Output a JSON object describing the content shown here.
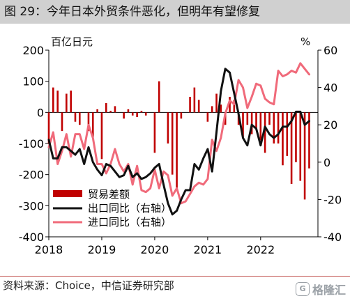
{
  "title": "图 29：今年日本外贸条件恶化，但明年有望修复",
  "source": "资料来源：Choice，中信证券研究部",
  "logo": {
    "text": "格隆汇",
    "mark": "G"
  },
  "colors": {
    "trade": "#c00000",
    "export": "#111111",
    "import": "#f06a7a",
    "rule": "#c0504d"
  },
  "chart_data": {
    "type": "bar",
    "left_unit": "百亿日元",
    "right_unit": "%",
    "ylim_left": [
      -400,
      200
    ],
    "yticks_left": [
      "200",
      "100",
      "0",
      "-100",
      "-200",
      "-300",
      "-400"
    ],
    "ylim_right": [
      -40,
      60
    ],
    "yticks_right": [
      "60",
      "40",
      "20",
      "0",
      "-20",
      "-40"
    ],
    "xlim": [
      2018.0,
      2022.99
    ],
    "xticks": [
      "2018",
      "2019",
      "2020",
      "2021",
      "2022"
    ],
    "legend": {
      "trade": "贸易差额",
      "export": "出口同比（右轴）",
      "import": "进口同比（右轴）"
    },
    "legend_position": "bottom-left",
    "series": [
      {
        "name": "贸易差额",
        "axis": "left",
        "kind": "bar",
        "x": [
          2018.0,
          2018.083,
          2018.167,
          2018.25,
          2018.333,
          2018.417,
          2018.5,
          2018.583,
          2018.667,
          2018.75,
          2018.833,
          2018.917,
          2019.0,
          2019.083,
          2019.167,
          2019.25,
          2019.333,
          2019.417,
          2019.5,
          2019.583,
          2019.667,
          2019.75,
          2019.833,
          2019.917,
          2020.0,
          2020.083,
          2020.167,
          2020.25,
          2020.333,
          2020.417,
          2020.5,
          2020.583,
          2020.667,
          2020.75,
          2020.833,
          2020.917,
          2021.0,
          2021.083,
          2021.167,
          2021.25,
          2021.333,
          2021.417,
          2021.5,
          2021.583,
          2021.667,
          2021.75,
          2021.833,
          2021.917,
          2022.0,
          2022.083,
          2022.167,
          2022.25,
          2022.333,
          2022.417,
          2022.5,
          2022.583,
          2022.667,
          2022.75,
          2022.833,
          2022.917
        ],
        "values": [
          -100,
          80,
          70,
          -60,
          60,
          70,
          -30,
          -40,
          0,
          -60,
          -80,
          10,
          -150,
          30,
          5,
          20,
          0,
          -20,
          10,
          -10,
          -15,
          5,
          -10,
          0,
          -130,
          100,
          0,
          -100,
          -200,
          -250,
          -20,
          0,
          50,
          80,
          40,
          0,
          -30,
          20,
          60,
          25,
          -40,
          50,
          40,
          -40,
          -80,
          -40,
          -70,
          -55,
          -90,
          -130,
          -40,
          -100,
          -100,
          -170,
          -140,
          -230,
          -160,
          -220,
          -280,
          -180
        ]
      },
      {
        "name": "出口同比（右轴）",
        "axis": "right",
        "kind": "line",
        "x": [
          2018.0,
          2018.083,
          2018.167,
          2018.25,
          2018.333,
          2018.417,
          2018.5,
          2018.583,
          2018.667,
          2018.75,
          2018.833,
          2018.917,
          2019.0,
          2019.083,
          2019.167,
          2019.25,
          2019.333,
          2019.417,
          2019.5,
          2019.583,
          2019.667,
          2019.75,
          2019.833,
          2019.917,
          2020.0,
          2020.083,
          2020.167,
          2020.25,
          2020.333,
          2020.417,
          2020.5,
          2020.583,
          2020.667,
          2020.75,
          2020.833,
          2020.917,
          2021.0,
          2021.083,
          2021.167,
          2021.25,
          2021.333,
          2021.417,
          2021.5,
          2021.583,
          2021.667,
          2021.75,
          2021.833,
          2021.917,
          2022.0,
          2022.083,
          2022.167,
          2022.25,
          2022.333,
          2022.417,
          2022.5,
          2022.583,
          2022.667,
          2022.75,
          2022.833,
          2022.917
        ],
        "values": [
          12,
          2,
          2,
          8,
          8,
          6,
          4,
          7,
          -1,
          8,
          0,
          -4,
          -7,
          -1,
          -2,
          -5,
          -8,
          -7,
          -2,
          -8,
          -6,
          -9,
          -8,
          -6,
          -3,
          -1,
          -12,
          -22,
          -28,
          -26,
          -20,
          -15,
          -15,
          -1,
          -4,
          2,
          7,
          -5,
          16,
          38,
          50,
          48,
          37,
          26,
          13,
          9,
          20,
          18,
          9,
          19,
          15,
          13,
          15,
          19,
          19,
          22,
          27,
          27,
          20,
          22
        ]
      },
      {
        "name": "进口同比（右轴）",
        "axis": "right",
        "kind": "line",
        "x": [
          2018.0,
          2018.083,
          2018.167,
          2018.25,
          2018.333,
          2018.417,
          2018.5,
          2018.583,
          2018.667,
          2018.75,
          2018.833,
          2018.917,
          2019.0,
          2019.083,
          2019.167,
          2019.25,
          2019.333,
          2019.417,
          2019.5,
          2019.583,
          2019.667,
          2019.75,
          2019.833,
          2019.917,
          2020.0,
          2020.083,
          2020.167,
          2020.25,
          2020.333,
          2020.417,
          2020.5,
          2020.583,
          2020.667,
          2020.75,
          2020.833,
          2020.917,
          2021.0,
          2021.083,
          2021.167,
          2021.25,
          2021.333,
          2021.417,
          2021.5,
          2021.583,
          2021.667,
          2021.75,
          2021.833,
          2021.917,
          2022.0,
          2022.083,
          2022.167,
          2022.25,
          2022.333,
          2022.417,
          2022.5,
          2022.583,
          2022.667,
          2022.75,
          2022.833,
          2022.917
        ],
        "values": [
          8,
          16,
          -1,
          6,
          15,
          3,
          15,
          15,
          7,
          20,
          13,
          -1,
          -1,
          -6,
          -1,
          7,
          -1,
          -5,
          -1,
          -12,
          -2,
          -15,
          -16,
          -14,
          -4,
          -14,
          -5,
          -7,
          -18,
          -14,
          -22,
          -21,
          -17,
          -13,
          -11,
          -12,
          -9,
          12,
          6,
          13,
          26,
          33,
          31,
          44,
          40,
          29,
          35,
          42,
          41,
          34,
          32,
          31,
          49,
          46,
          47,
          49,
          48,
          53,
          50,
          47
        ]
      }
    ]
  }
}
